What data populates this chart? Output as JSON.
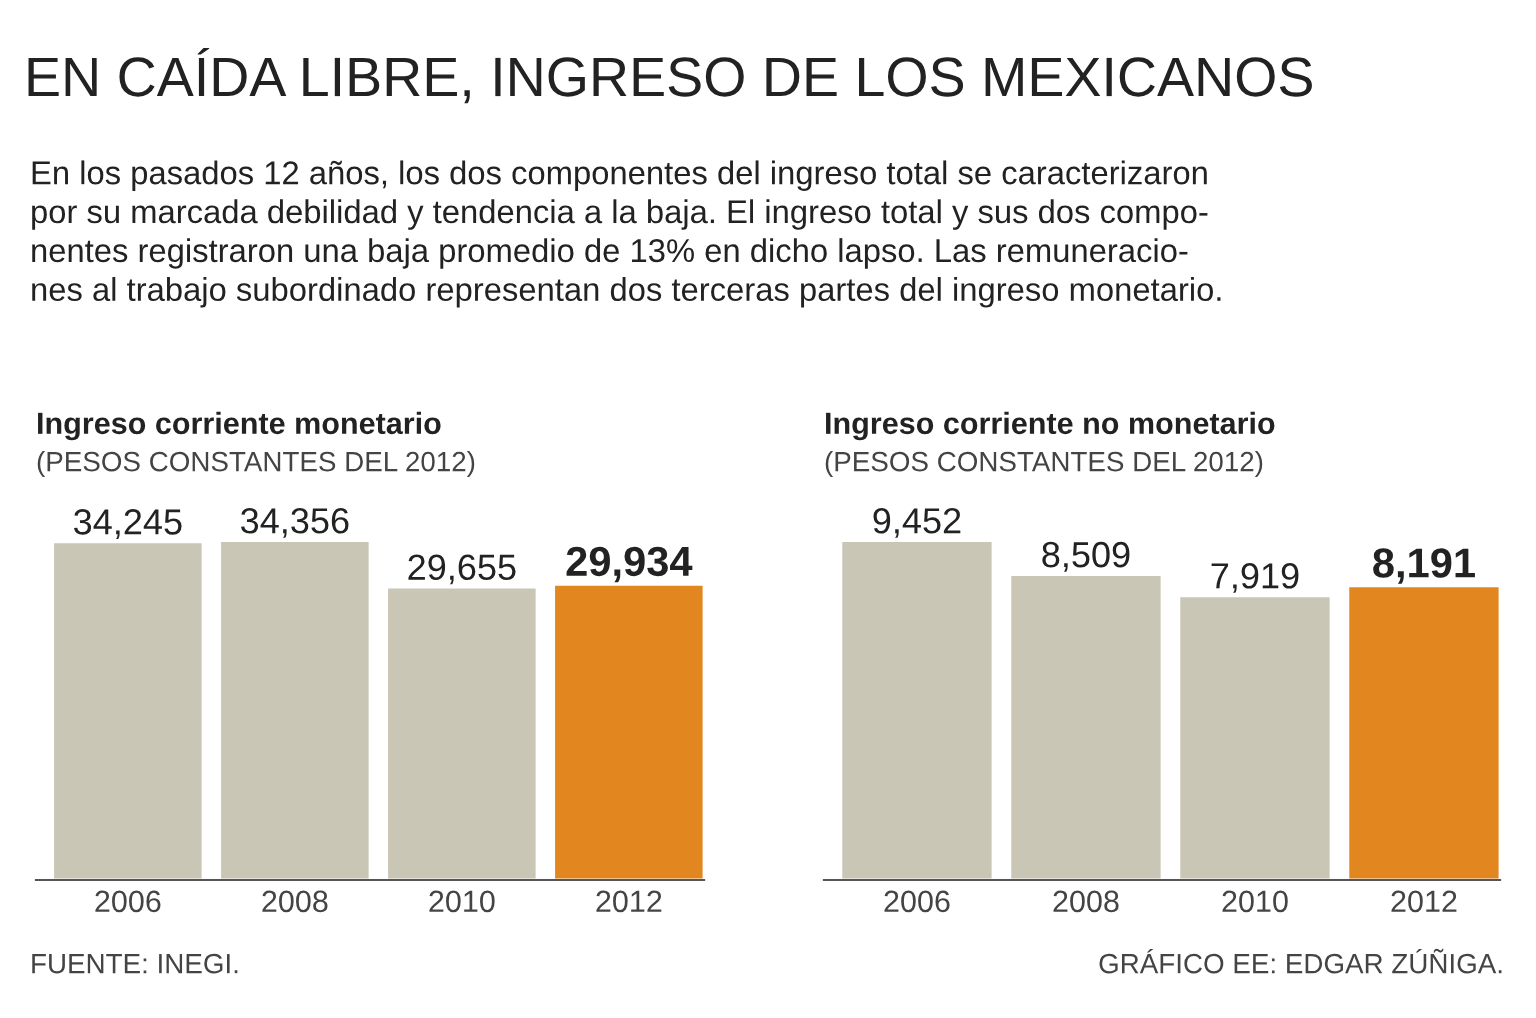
{
  "chart_data": [
    {
      "type": "bar",
      "title": "Ingreso corriente monetario",
      "subtitle": "(PESOS CONSTANTES DEL 2012)",
      "categories": [
        "2006",
        "2008",
        "2010",
        "2012"
      ],
      "values": [
        34245,
        34356,
        29655,
        29934
      ],
      "colors": [
        "#c9c6b6",
        "#c9c6b6",
        "#c9c6b6",
        "#e2861f"
      ],
      "value_labels": [
        "34,245",
        "34,356",
        "29,655",
        "29,934"
      ],
      "annotations": [
        "EN CAÍDA LIBRE, INGRESO DE LOS MEXICANOS",
        "En los pasados 12 años, los dos componentes del ingreso total se caracterizaron\npor su marcada debilidad y tendencia a la baja. El ingreso total y sus dos compo-\nnentes registraron una baja promedio de 13% en dicho lapso. Las remuneracio-\nnes al trabajo subordinado representan dos terceras partes del ingreso monetario.",
        "FUENTE: INEGI."
      ]
    },
    {
      "type": "bar",
      "title": "Ingreso corriente no monetario",
      "subtitle": "(PESOS CONSTANTES DEL 2012)",
      "categories": [
        "2006",
        "2008",
        "2010",
        "2012"
      ],
      "values": [
        9452,
        8509,
        7919,
        8191
      ],
      "colors": [
        "#c9c6b6",
        "#c9c6b6",
        "#c9c6b6",
        "#e2861f"
      ],
      "value_labels": [
        "9,452",
        "8,509",
        "7,919",
        "8,191"
      ],
      "annotations": [
        "GRÁFICO EE: EDGAR ZÚÑIGA."
      ]
    }
  ]
}
